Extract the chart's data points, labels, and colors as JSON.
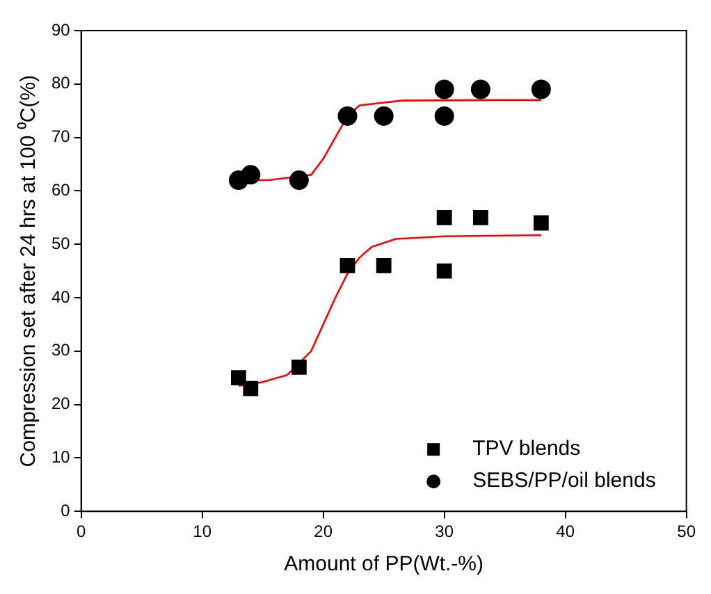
{
  "chart_data": {
    "type": "scatter",
    "xlabel": "Amount of PP(Wt.-%)",
    "ylabel": "Compression set after 24 hrs at 100 ⁰C(%)",
    "xlim": [
      0,
      50
    ],
    "xticks": [
      0,
      10,
      20,
      30,
      40,
      50
    ],
    "ylim": [
      0,
      90
    ],
    "yticks": [
      0,
      10,
      20,
      30,
      40,
      50,
      60,
      70,
      80,
      90
    ],
    "grid": false,
    "legend": "bottom right",
    "series": [
      {
        "name": "TPV blends",
        "type": "scatter",
        "marker": "square",
        "color": "#000000",
        "x": [
          13,
          14,
          18,
          22,
          25,
          30,
          30,
          33,
          38
        ],
        "values": [
          25,
          23,
          27,
          46,
          46,
          55,
          45,
          55,
          54
        ]
      },
      {
        "name": "SEBS/PP/oil blends",
        "type": "scatter",
        "marker": "circle",
        "color": "#000000",
        "x": [
          13,
          14,
          18,
          22,
          25,
          30,
          30,
          33,
          38
        ],
        "values": [
          62,
          63,
          62,
          74,
          74,
          79,
          74,
          79,
          79
        ]
      },
      {
        "type": "line",
        "marker": "none",
        "color": "#ff0000",
        "x": [
          13,
          15,
          17,
          19,
          20,
          21,
          22,
          23,
          24,
          26,
          30,
          38
        ],
        "values": [
          23.5,
          24.2,
          25.5,
          30,
          35,
          40,
          44.5,
          47.5,
          49.5,
          51,
          51.5,
          51.7
        ]
      },
      {
        "type": "line",
        "marker": "none",
        "color": "#ff0000",
        "x": [
          13,
          15.5,
          19,
          20,
          21,
          22,
          23,
          26.5,
          34,
          38
        ],
        "values": [
          62,
          62,
          63,
          66,
          70,
          74,
          76,
          76.9,
          77,
          77
        ]
      }
    ]
  }
}
